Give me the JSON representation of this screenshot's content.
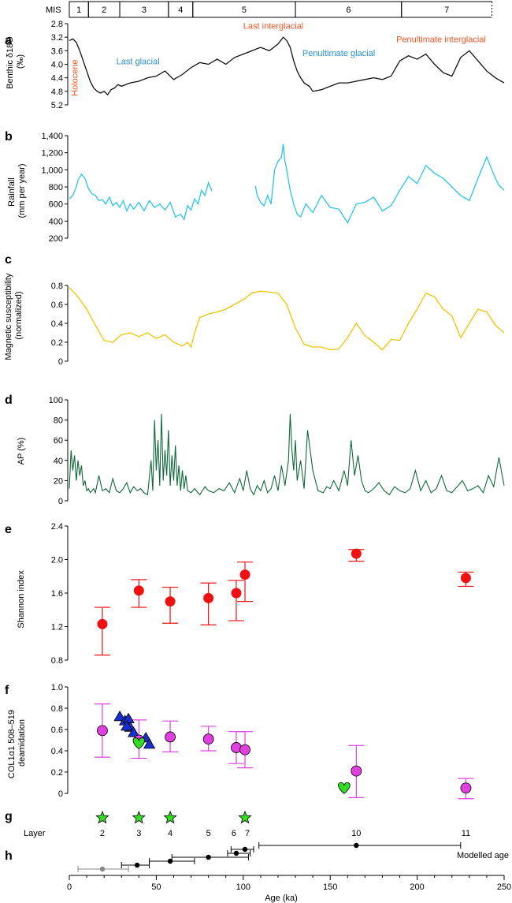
{
  "figure": {
    "x_axis": {
      "label": "Age (ka)",
      "range": [
        0,
        250
      ],
      "ticks": [
        0,
        50,
        100,
        150,
        200,
        250
      ]
    },
    "colors": {
      "rainfall": "#29c4e8",
      "magsus": "#f2c400",
      "ap": "#11693a",
      "shannon": "#ee1111",
      "deam": "#e040e0",
      "triangle": "#1a2fd0",
      "green": "#33dd22",
      "annot_blue": "#2a8fd0",
      "annot_orange": "#ee5522"
    }
  },
  "panels": {
    "mis": {
      "letter": "",
      "label": "MIS",
      "stages": [
        {
          "name": "1",
          "start": 0,
          "end": 11
        },
        {
          "name": "2",
          "start": 11,
          "end": 29
        },
        {
          "name": "3",
          "start": 29,
          "end": 57
        },
        {
          "name": "4",
          "start": 57,
          "end": 71
        },
        {
          "name": "5",
          "start": 71,
          "end": 130
        },
        {
          "name": "6",
          "start": 130,
          "end": 191
        },
        {
          "name": "7",
          "start": 191,
          "end": 243
        }
      ]
    },
    "a": {
      "letter": "a",
      "ylabel_line1": "Benthic δ18O",
      "ylabel_line2": "(‰)",
      "yticks": [
        "2.8",
        "3.2",
        "3.6",
        "4.0",
        "4.4",
        "4.8",
        "5.2"
      ],
      "annotations": [
        {
          "text": "Holocene",
          "color": "orange",
          "age": 3,
          "value": 4.4,
          "vertical": true
        },
        {
          "text": "Last glacial",
          "color": "blue",
          "age": 27,
          "value": 4.0
        },
        {
          "text": "Last interglacial",
          "color": "orange",
          "age": 100,
          "value": 2.95
        },
        {
          "text": "Penultimate glacial",
          "color": "blue",
          "age": 134,
          "value": 3.75
        },
        {
          "text": "Penultimate interglacial",
          "color": "orange",
          "age": 188,
          "value": 3.35
        }
      ]
    },
    "b": {
      "letter": "b",
      "ylabel_line1": "Rainfall",
      "ylabel_line2": "(mm per year)",
      "yticks": [
        "200",
        "400",
        "600",
        "800",
        "1,000",
        "1,200",
        "1,400"
      ]
    },
    "c": {
      "letter": "c",
      "ylabel_line1": "Magnetic susceptibility",
      "ylabel_line2": "(normalized)",
      "yticks": [
        "0",
        "0.2",
        "0.4",
        "0.6",
        "0.8"
      ]
    },
    "d": {
      "letter": "d",
      "ylabel_line1": "AP (%)",
      "ylabel_line2": "",
      "yticks": [
        "0",
        "20",
        "40",
        "60",
        "80",
        "100"
      ]
    },
    "e": {
      "letter": "e",
      "ylabel_line1": "Shannon index",
      "ylabel_line2": "",
      "yticks": [
        "0.8",
        "1.2",
        "1.6",
        "2.0",
        "2.4"
      ]
    },
    "f": {
      "letter": "f",
      "ylabel_line1": "COL1α1 508–519",
      "ylabel_line2": "deamidation",
      "yticks": [
        "0",
        "0.2",
        "0.4",
        "0.6",
        "0.8",
        "1.0"
      ]
    },
    "g": {
      "letter": "g",
      "layer_label": "Layer",
      "layers": [
        {
          "name": "2",
          "age": 19
        },
        {
          "name": "3",
          "age": 40
        },
        {
          "name": "4",
          "age": 58
        },
        {
          "name": "5",
          "age": 80
        },
        {
          "name": "6",
          "age": 96
        },
        {
          "name": "7",
          "age": 101
        },
        {
          "name": "10",
          "age": 165
        },
        {
          "name": "11",
          "age": 228
        }
      ]
    },
    "h": {
      "letter": "h",
      "label": "Modelled age"
    }
  },
  "chart_data": [
    {
      "type": "line",
      "panel": "a",
      "ylabel": "Benthic δ18O (‰)",
      "ylim": [
        5.2,
        2.8
      ],
      "y_inverted": true,
      "x": [
        0,
        2,
        4,
        6,
        8,
        10,
        12,
        14,
        16,
        18,
        20,
        22,
        24,
        26,
        28,
        30,
        35,
        40,
        45,
        50,
        55,
        60,
        65,
        70,
        75,
        80,
        85,
        90,
        95,
        100,
        105,
        110,
        115,
        120,
        123,
        125,
        127,
        129,
        131,
        133,
        135,
        138,
        140,
        145,
        150,
        155,
        160,
        165,
        170,
        175,
        180,
        185,
        190,
        195,
        200,
        205,
        210,
        215,
        220,
        225,
        230,
        235,
        240,
        245,
        250
      ],
      "y": [
        3.3,
        3.25,
        3.35,
        3.6,
        3.9,
        4.2,
        4.5,
        4.7,
        4.8,
        4.85,
        4.8,
        4.9,
        4.75,
        4.7,
        4.6,
        4.65,
        4.55,
        4.5,
        4.4,
        4.35,
        4.2,
        4.45,
        4.3,
        4.1,
        3.95,
        4.0,
        3.85,
        4.0,
        3.8,
        3.7,
        3.6,
        3.5,
        3.6,
        3.4,
        3.2,
        3.3,
        3.5,
        3.9,
        4.2,
        4.4,
        4.55,
        4.65,
        4.8,
        4.75,
        4.65,
        4.55,
        4.55,
        4.5,
        4.45,
        4.4,
        4.45,
        4.35,
        3.9,
        3.75,
        3.85,
        3.7,
        4.0,
        4.25,
        4.35,
        3.8,
        3.6,
        3.9,
        4.2,
        4.4,
        4.55
      ]
    },
    {
      "type": "line",
      "panel": "b",
      "ylabel": "Rainfall (mm per year)",
      "ylim": [
        200,
        1400
      ],
      "segments": [
        {
          "x": [
            0,
            2,
            4,
            5,
            7,
            9,
            11,
            13,
            15,
            17,
            19,
            21,
            23,
            25,
            27,
            29,
            31,
            33,
            35,
            37,
            40,
            43,
            46,
            49,
            52,
            55,
            58,
            61,
            64,
            66,
            68,
            70,
            72,
            74,
            76,
            78,
            80,
            82
          ],
          "y": [
            660,
            700,
            800,
            880,
            950,
            900,
            780,
            720,
            700,
            640,
            650,
            600,
            680,
            580,
            620,
            560,
            640,
            520,
            600,
            540,
            620,
            520,
            640,
            560,
            600,
            530,
            620,
            450,
            480,
            420,
            580,
            530,
            660,
            600,
            760,
            700,
            850,
            750
          ]
        },
        {
          "x": [
            107,
            108,
            110,
            112,
            114,
            116,
            118,
            120,
            122,
            123,
            124,
            125,
            127,
            129,
            131,
            133,
            136,
            140,
            145,
            150,
            155,
            160,
            165,
            170,
            175,
            180,
            185,
            190,
            195,
            200,
            205,
            210,
            215,
            220,
            225,
            230,
            235,
            240,
            243,
            245,
            247,
            250
          ],
          "y": [
            810,
            700,
            620,
            580,
            700,
            600,
            1000,
            1100,
            1150,
            1300,
            1100,
            1000,
            760,
            600,
            480,
            450,
            600,
            500,
            700,
            560,
            540,
            380,
            600,
            620,
            680,
            520,
            580,
            760,
            920,
            840,
            1050,
            960,
            900,
            800,
            700,
            640,
            900,
            1150,
            1000,
            900,
            820,
            760
          ]
        }
      ]
    },
    {
      "type": "line",
      "panel": "c",
      "ylabel": "Magnetic susceptibility (normalized)",
      "ylim": [
        0,
        0.8
      ],
      "x": [
        0,
        5,
        10,
        15,
        20,
        25,
        30,
        35,
        40,
        45,
        50,
        55,
        60,
        65,
        68,
        70,
        72,
        75,
        80,
        85,
        90,
        95,
        100,
        105,
        110,
        115,
        120,
        125,
        130,
        135,
        140,
        145,
        150,
        155,
        160,
        165,
        170,
        175,
        180,
        185,
        190,
        195,
        200,
        205,
        210,
        215,
        220,
        225,
        230,
        235,
        240,
        245,
        250
      ],
      "y": [
        0.78,
        0.68,
        0.55,
        0.38,
        0.22,
        0.2,
        0.28,
        0.3,
        0.26,
        0.3,
        0.24,
        0.28,
        0.2,
        0.16,
        0.2,
        0.15,
        0.3,
        0.46,
        0.5,
        0.52,
        0.55,
        0.6,
        0.65,
        0.72,
        0.74,
        0.73,
        0.72,
        0.6,
        0.35,
        0.18,
        0.15,
        0.15,
        0.12,
        0.13,
        0.25,
        0.4,
        0.27,
        0.2,
        0.12,
        0.23,
        0.22,
        0.4,
        0.55,
        0.72,
        0.68,
        0.55,
        0.48,
        0.25,
        0.4,
        0.55,
        0.52,
        0.38,
        0.3
      ]
    },
    {
      "type": "line",
      "panel": "d",
      "ylabel": "AP (%)",
      "ylim": [
        0,
        100
      ],
      "x": [
        0,
        1,
        2,
        3,
        4,
        5,
        6,
        7,
        8,
        9,
        10,
        11,
        12,
        13,
        14,
        15,
        17,
        19,
        21,
        23,
        25,
        27,
        29,
        31,
        33,
        35,
        37,
        39,
        41,
        43,
        45,
        47,
        48,
        49,
        50,
        51,
        52,
        53,
        54,
        55,
        56,
        57,
        58,
        59,
        60,
        61,
        62,
        63,
        64,
        65,
        66,
        67,
        68,
        70,
        72,
        75,
        78,
        80,
        83,
        86,
        89,
        92,
        95,
        98,
        100,
        102,
        104,
        106,
        108,
        110,
        112,
        114,
        116,
        118,
        120,
        122,
        124,
        126,
        127,
        128,
        129,
        130,
        131,
        133,
        135,
        137,
        140,
        143,
        146,
        148,
        150,
        152,
        155,
        158,
        160,
        162,
        164,
        166,
        168,
        170,
        172,
        175,
        178,
        181,
        184,
        187,
        190,
        193,
        196,
        199,
        202,
        205,
        208,
        211,
        214,
        217,
        220,
        223,
        226,
        229,
        232,
        235,
        238,
        241,
        244,
        247,
        250
      ],
      "y": [
        12,
        50,
        30,
        45,
        20,
        40,
        25,
        35,
        15,
        20,
        10,
        12,
        8,
        10,
        12,
        8,
        25,
        10,
        12,
        8,
        22,
        10,
        8,
        12,
        18,
        8,
        14,
        10,
        12,
        8,
        6,
        40,
        10,
        80,
        30,
        60,
        15,
        86,
        20,
        50,
        25,
        70,
        15,
        45,
        20,
        55,
        15,
        35,
        10,
        30,
        12,
        25,
        10,
        8,
        12,
        6,
        14,
        10,
        8,
        12,
        10,
        18,
        8,
        22,
        10,
        30,
        12,
        6,
        15,
        10,
        20,
        8,
        12,
        25,
        10,
        35,
        15,
        40,
        86,
        50,
        30,
        60,
        20,
        40,
        12,
        70,
        30,
        10,
        8,
        14,
        12,
        20,
        10,
        30,
        15,
        60,
        25,
        45,
        20,
        10,
        8,
        12,
        18,
        10,
        6,
        14,
        10,
        8,
        12,
        30,
        10,
        20,
        8,
        12,
        25,
        10,
        8,
        14,
        20,
        10,
        12,
        15,
        8,
        25,
        14,
        43,
        15
      ]
    },
    {
      "type": "scatter",
      "panel": "e",
      "ylabel": "Shannon index",
      "ylim": [
        0.8,
        2.4
      ],
      "points": [
        {
          "age": 19,
          "value": 1.23,
          "low": 0.86,
          "high": 1.43
        },
        {
          "age": 40,
          "value": 1.63,
          "low": 1.43,
          "high": 1.76
        },
        {
          "age": 58,
          "value": 1.5,
          "low": 1.24,
          "high": 1.67
        },
        {
          "age": 80,
          "value": 1.54,
          "low": 1.22,
          "high": 1.72
        },
        {
          "age": 96,
          "value": 1.6,
          "low": 1.27,
          "high": 1.75
        },
        {
          "age": 101,
          "value": 1.82,
          "low": 1.5,
          "high": 1.97
        },
        {
          "age": 165,
          "value": 2.07,
          "low": 1.98,
          "high": 2.12
        },
        {
          "age": 228,
          "value": 1.78,
          "low": 1.68,
          "high": 1.85
        }
      ]
    },
    {
      "type": "scatter",
      "panel": "f",
      "ylabel": "COL1α1 508–519 deamidation",
      "ylim": [
        0,
        1.0
      ],
      "circles": [
        {
          "age": 19,
          "value": 0.59,
          "low": 0.34,
          "high": 0.84
        },
        {
          "age": 40,
          "value": 0.5,
          "low": 0.33,
          "high": 0.69
        },
        {
          "age": 58,
          "value": 0.53,
          "low": 0.39,
          "high": 0.68
        },
        {
          "age": 80,
          "value": 0.51,
          "low": 0.4,
          "high": 0.63
        },
        {
          "age": 96,
          "value": 0.43,
          "low": 0.28,
          "high": 0.58
        },
        {
          "age": 101,
          "value": 0.41,
          "low": 0.24,
          "high": 0.58
        },
        {
          "age": 165,
          "value": 0.21,
          "low": -0.04,
          "high": 0.45
        },
        {
          "age": 228,
          "value": 0.05,
          "low": -0.05,
          "high": 0.14
        }
      ],
      "triangles": [
        {
          "age": 29,
          "value": 0.72
        },
        {
          "age": 32,
          "value": 0.68
        },
        {
          "age": 34,
          "value": 0.7
        },
        {
          "age": 35,
          "value": 0.62
        },
        {
          "age": 33,
          "value": 0.63
        },
        {
          "age": 37,
          "value": 0.57
        },
        {
          "age": 44,
          "value": 0.52
        },
        {
          "age": 46,
          "value": 0.46
        }
      ],
      "hearts": [
        {
          "age": 40,
          "value": 0.47
        },
        {
          "age": 158,
          "value": 0.05
        }
      ]
    },
    {
      "type": "scatter",
      "panel": "g",
      "stars": [
        {
          "age": 19
        },
        {
          "age": 40
        },
        {
          "age": 58
        },
        {
          "age": 101
        }
      ]
    },
    {
      "type": "scatter",
      "panel": "h",
      "ages": [
        {
          "age": 19,
          "low": 5,
          "high": 34,
          "level": 0,
          "grey": true
        },
        {
          "age": 39,
          "low": 30,
          "high": 46,
          "level": 1,
          "grey": false
        },
        {
          "age": 58,
          "low": 46,
          "high": 72,
          "level": 2,
          "grey": false
        },
        {
          "age": 80,
          "low": 59,
          "high": 103,
          "level": 3,
          "grey": false
        },
        {
          "age": 96,
          "low": 91,
          "high": 104,
          "level": 4,
          "grey": false
        },
        {
          "age": 101,
          "low": 93,
          "high": 106,
          "level": 5,
          "grey": false
        },
        {
          "age": 165,
          "low": 109,
          "high": 225,
          "level": 6,
          "grey": false
        }
      ]
    }
  ]
}
